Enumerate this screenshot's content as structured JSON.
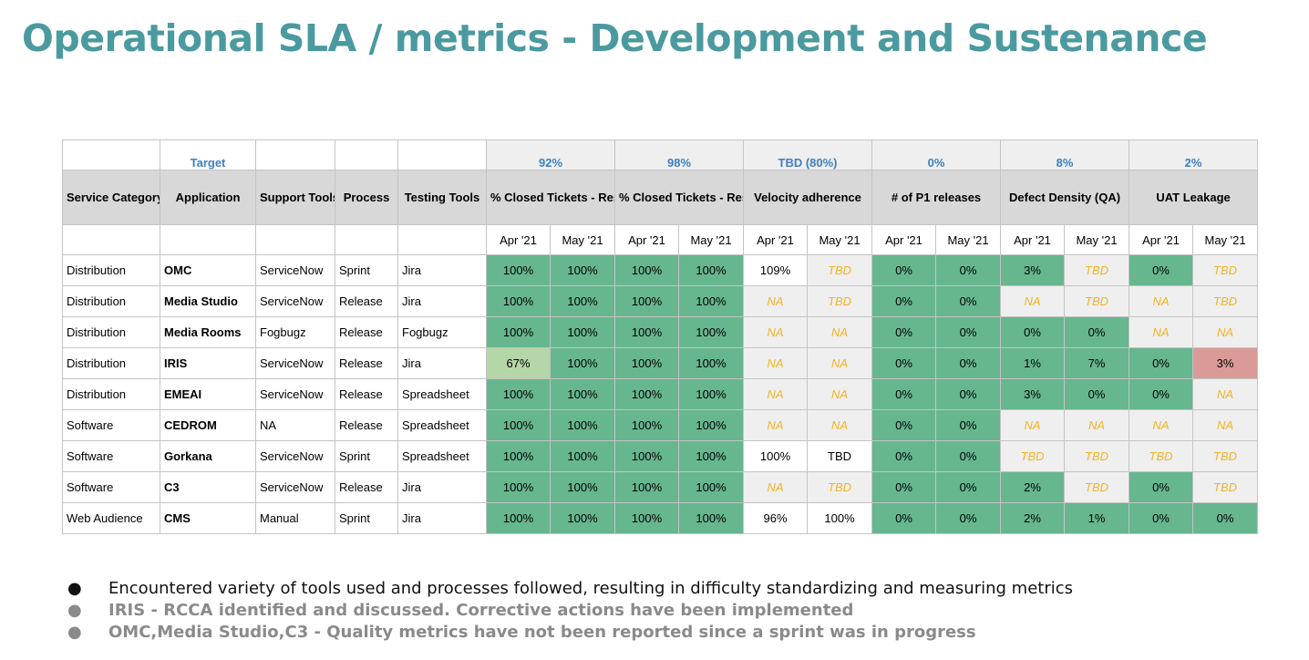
{
  "title": "Operational SLA / metrics - Development and Sustenance",
  "table": {
    "target_label": "Target",
    "targets": [
      "92%",
      "98%",
      "TBD (80%)",
      "0%",
      "8%",
      "2%"
    ],
    "headers": {
      "service_category": "Service Category",
      "application": "Application",
      "support_tools": "Support Tools",
      "process": "Process",
      "testing_tools": "Testing Tools",
      "metrics": [
        "% Closed Tickets - Response",
        "% Closed Tickets - Resolution",
        "Velocity adherence",
        "# of P1 releases",
        "Defect Density (QA)",
        "UAT Leakage"
      ]
    },
    "months": [
      "Apr '21",
      "May '21"
    ],
    "rows": [
      {
        "category": "Distribution",
        "application": "OMC",
        "support": "ServiceNow",
        "process": "Sprint",
        "testing": "Jira",
        "cells": [
          {
            "v": "100%",
            "s": "green"
          },
          {
            "v": "100%",
            "s": "green"
          },
          {
            "v": "100%",
            "s": "green"
          },
          {
            "v": "100%",
            "s": "green"
          },
          {
            "v": "109%",
            "s": "white"
          },
          {
            "v": "TBD",
            "s": "pending"
          },
          {
            "v": "0%",
            "s": "green"
          },
          {
            "v": "0%",
            "s": "green"
          },
          {
            "v": "3%",
            "s": "green"
          },
          {
            "v": "TBD",
            "s": "pending"
          },
          {
            "v": "0%",
            "s": "green"
          },
          {
            "v": "TBD",
            "s": "pending"
          }
        ]
      },
      {
        "category": "Distribution",
        "application": "Media Studio",
        "support": "ServiceNow",
        "process": "Release",
        "testing": "Jira",
        "cells": [
          {
            "v": "100%",
            "s": "green"
          },
          {
            "v": "100%",
            "s": "green"
          },
          {
            "v": "100%",
            "s": "green"
          },
          {
            "v": "100%",
            "s": "green"
          },
          {
            "v": "NA",
            "s": "pending"
          },
          {
            "v": "TBD",
            "s": "pending"
          },
          {
            "v": "0%",
            "s": "green"
          },
          {
            "v": "0%",
            "s": "green"
          },
          {
            "v": "NA",
            "s": "pending"
          },
          {
            "v": "TBD",
            "s": "pending"
          },
          {
            "v": "NA",
            "s": "pending"
          },
          {
            "v": "TBD",
            "s": "pending"
          }
        ]
      },
      {
        "category": "Distribution",
        "application": "Media Rooms",
        "support": "Fogbugz",
        "process": "Release",
        "testing": "Fogbugz",
        "cells": [
          {
            "v": "100%",
            "s": "green"
          },
          {
            "v": "100%",
            "s": "green"
          },
          {
            "v": "100%",
            "s": "green"
          },
          {
            "v": "100%",
            "s": "green"
          },
          {
            "v": "NA",
            "s": "pending"
          },
          {
            "v": "NA",
            "s": "pending"
          },
          {
            "v": "0%",
            "s": "green"
          },
          {
            "v": "0%",
            "s": "green"
          },
          {
            "v": "0%",
            "s": "green"
          },
          {
            "v": "0%",
            "s": "green"
          },
          {
            "v": "NA",
            "s": "pending"
          },
          {
            "v": "NA",
            "s": "pending"
          }
        ]
      },
      {
        "category": "Distribution",
        "application": "IRIS",
        "support": "ServiceNow",
        "process": "Release",
        "testing": "Jira",
        "cells": [
          {
            "v": "67%",
            "s": "lightgreen"
          },
          {
            "v": "100%",
            "s": "green"
          },
          {
            "v": "100%",
            "s": "green"
          },
          {
            "v": "100%",
            "s": "green"
          },
          {
            "v": "NA",
            "s": "pending"
          },
          {
            "v": "NA",
            "s": "pending"
          },
          {
            "v": "0%",
            "s": "green"
          },
          {
            "v": "0%",
            "s": "green"
          },
          {
            "v": "1%",
            "s": "green"
          },
          {
            "v": "7%",
            "s": "green"
          },
          {
            "v": "0%",
            "s": "green"
          },
          {
            "v": "3%",
            "s": "red"
          }
        ]
      },
      {
        "category": "Distribution",
        "application": "EMEAI",
        "support": "ServiceNow",
        "process": "Release",
        "testing": "Spreadsheet",
        "cells": [
          {
            "v": "100%",
            "s": "green"
          },
          {
            "v": "100%",
            "s": "green"
          },
          {
            "v": "100%",
            "s": "green"
          },
          {
            "v": "100%",
            "s": "green"
          },
          {
            "v": "NA",
            "s": "pending"
          },
          {
            "v": "NA",
            "s": "pending"
          },
          {
            "v": "0%",
            "s": "green"
          },
          {
            "v": "0%",
            "s": "green"
          },
          {
            "v": "3%",
            "s": "green"
          },
          {
            "v": "0%",
            "s": "green"
          },
          {
            "v": "0%",
            "s": "green"
          },
          {
            "v": "NA",
            "s": "pending"
          }
        ]
      },
      {
        "category": "Software",
        "application": "CEDROM",
        "support": "NA",
        "process": "Release",
        "testing": "Spreadsheet",
        "cells": [
          {
            "v": "100%",
            "s": "green"
          },
          {
            "v": "100%",
            "s": "green"
          },
          {
            "v": "100%",
            "s": "green"
          },
          {
            "v": "100%",
            "s": "green"
          },
          {
            "v": "NA",
            "s": "pending"
          },
          {
            "v": "NA",
            "s": "pending"
          },
          {
            "v": "0%",
            "s": "green"
          },
          {
            "v": "0%",
            "s": "green"
          },
          {
            "v": "NA",
            "s": "pending"
          },
          {
            "v": "NA",
            "s": "pending"
          },
          {
            "v": "NA",
            "s": "pending"
          },
          {
            "v": "NA",
            "s": "pending"
          }
        ]
      },
      {
        "category": "Software",
        "application": "Gorkana",
        "support": "ServiceNow",
        "process": "Sprint",
        "testing": "Spreadsheet",
        "cells": [
          {
            "v": "100%",
            "s": "green"
          },
          {
            "v": "100%",
            "s": "green"
          },
          {
            "v": "100%",
            "s": "green"
          },
          {
            "v": "100%",
            "s": "green"
          },
          {
            "v": "100%",
            "s": "white"
          },
          {
            "v": "TBD",
            "s": "white"
          },
          {
            "v": "0%",
            "s": "green"
          },
          {
            "v": "0%",
            "s": "green"
          },
          {
            "v": "TBD",
            "s": "pending"
          },
          {
            "v": "TBD",
            "s": "pending"
          },
          {
            "v": "TBD",
            "s": "pending"
          },
          {
            "v": "TBD",
            "s": "pending"
          }
        ]
      },
      {
        "category": "Software",
        "application": "C3",
        "support": "ServiceNow",
        "process": "Release",
        "testing": "Jira",
        "cells": [
          {
            "v": "100%",
            "s": "green"
          },
          {
            "v": "100%",
            "s": "green"
          },
          {
            "v": "100%",
            "s": "green"
          },
          {
            "v": "100%",
            "s": "green"
          },
          {
            "v": "NA",
            "s": "pending"
          },
          {
            "v": "TBD",
            "s": "pending"
          },
          {
            "v": "0%",
            "s": "green"
          },
          {
            "v": "0%",
            "s": "green"
          },
          {
            "v": "2%",
            "s": "green"
          },
          {
            "v": "TBD",
            "s": "pending"
          },
          {
            "v": "0%",
            "s": "green"
          },
          {
            "v": "TBD",
            "s": "pending"
          }
        ]
      },
      {
        "category": "Web Audience",
        "application": "CMS",
        "support": "Manual",
        "process": "Sprint",
        "testing": "Jira",
        "cells": [
          {
            "v": "100%",
            "s": "green"
          },
          {
            "v": "100%",
            "s": "green"
          },
          {
            "v": "100%",
            "s": "green"
          },
          {
            "v": "100%",
            "s": "green"
          },
          {
            "v": "96%",
            "s": "white"
          },
          {
            "v": "100%",
            "s": "white"
          },
          {
            "v": "0%",
            "s": "green"
          },
          {
            "v": "0%",
            "s": "green"
          },
          {
            "v": "2%",
            "s": "green"
          },
          {
            "v": "1%",
            "s": "green"
          },
          {
            "v": "0%",
            "s": "green"
          },
          {
            "v": "0%",
            "s": "green"
          }
        ]
      }
    ]
  },
  "colors": {
    "title": "#4a9aa0",
    "target": "#3f7fbf",
    "green": "#66b68e",
    "lightgreen": "#b5d6a6",
    "red": "#da9a98",
    "pending_text": "#f0b424",
    "header_bg": "#d8d8d8"
  },
  "bullet_icon": "filled-circle",
  "bullet_char": "●",
  "notes": [
    "Encountered variety of tools used and processes followed, resulting in difficulty standardizing and measuring metrics",
    "IRIS - RCCA identified and discussed. Corrective actions have been implemented",
    "OMC,Media Studio,C3 - Quality metrics have not been reported since a sprint was in progress"
  ]
}
